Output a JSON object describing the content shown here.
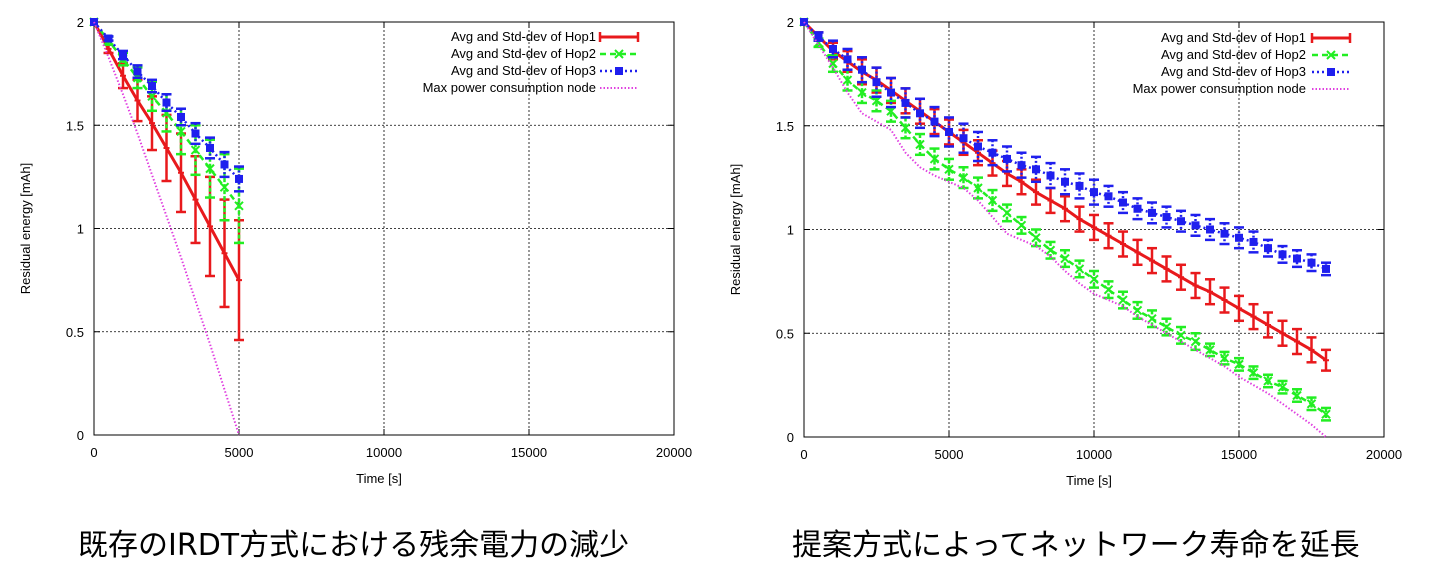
{
  "chart_data": [
    {
      "type": "line",
      "xlabel": "Time [s]",
      "ylabel": "Residual energy [mAh]",
      "xlim": [
        0,
        20000
      ],
      "ylim": [
        0,
        2
      ],
      "xticks": [
        "0",
        "5000",
        "10000",
        "15000",
        "20000"
      ],
      "yticks": [
        "0",
        "0.5",
        "1",
        "1.5",
        "2"
      ],
      "grid": true,
      "legend_position": "top-right",
      "caption": "既存のIRDT方式における残余電力の減少",
      "series": [
        {
          "name": "Avg and Std-dev of Hop1",
          "color": "#e8191c",
          "style": "solid-errorbar",
          "x": [
            0,
            500,
            1000,
            1500,
            2000,
            2500,
            3000,
            3500,
            4000,
            4500,
            5000
          ],
          "y": [
            2.0,
            1.87,
            1.74,
            1.62,
            1.51,
            1.39,
            1.27,
            1.14,
            1.01,
            0.88,
            0.75
          ],
          "err": [
            0,
            0.02,
            0.06,
            0.1,
            0.13,
            0.16,
            0.19,
            0.21,
            0.24,
            0.26,
            0.29
          ]
        },
        {
          "name": "Avg and Std-dev of Hop2",
          "color": "#22ee22",
          "style": "dashed-x",
          "x": [
            0,
            500,
            1000,
            1500,
            2000,
            2500,
            3000,
            3500,
            4000,
            4500,
            5000
          ],
          "y": [
            2.0,
            1.91,
            1.82,
            1.73,
            1.64,
            1.56,
            1.47,
            1.38,
            1.29,
            1.2,
            1.11
          ],
          "err": [
            0,
            0.02,
            0.03,
            0.05,
            0.07,
            0.09,
            0.11,
            0.12,
            0.14,
            0.16,
            0.18
          ]
        },
        {
          "name": "Avg and Std-dev of Hop3",
          "color": "#1f1fee",
          "style": "dotted-square",
          "x": [
            0,
            500,
            1000,
            1500,
            2000,
            2500,
            3000,
            3500,
            4000,
            4500,
            5000
          ],
          "y": [
            2.0,
            1.92,
            1.84,
            1.76,
            1.69,
            1.61,
            1.54,
            1.46,
            1.39,
            1.31,
            1.24
          ],
          "err": [
            0,
            0.01,
            0.02,
            0.03,
            0.03,
            0.04,
            0.04,
            0.05,
            0.05,
            0.06,
            0.06
          ]
        },
        {
          "name": "Max power consumption node",
          "color": "#e040e0",
          "style": "dotted-line",
          "x": [
            0,
            500,
            1000,
            1500,
            2000,
            2500,
            3000,
            3500,
            4000,
            4500,
            5000
          ],
          "y": [
            2.0,
            1.83,
            1.65,
            1.46,
            1.26,
            1.06,
            0.86,
            0.65,
            0.44,
            0.22,
            0.0
          ]
        }
      ]
    },
    {
      "type": "line",
      "xlabel": "Time [s]",
      "ylabel": "Residual energy [mAh]",
      "xlim": [
        0,
        20000
      ],
      "ylim": [
        0,
        2
      ],
      "xticks": [
        "0",
        "5000",
        "10000",
        "15000",
        "20000"
      ],
      "yticks": [
        "0",
        "0.5",
        "1",
        "1.5",
        "2"
      ],
      "grid": true,
      "legend_position": "top-right",
      "caption": "提案方式によってネットワーク寿命を延長",
      "series": [
        {
          "name": "Avg and Std-dev of Hop1",
          "color": "#e8191c",
          "style": "solid-errorbar",
          "x": [
            0,
            500,
            1000,
            1500,
            2000,
            2500,
            3000,
            3500,
            4000,
            4500,
            5000,
            5500,
            6000,
            6500,
            7000,
            7500,
            8000,
            8500,
            9000,
            9500,
            10000,
            10500,
            11000,
            11500,
            12000,
            12500,
            13000,
            13500,
            14000,
            14500,
            15000,
            15500,
            16000,
            16500,
            17000,
            17500,
            18000
          ],
          "y": [
            2.0,
            1.93,
            1.86,
            1.81,
            1.76,
            1.72,
            1.67,
            1.62,
            1.57,
            1.52,
            1.47,
            1.42,
            1.37,
            1.32,
            1.27,
            1.23,
            1.18,
            1.14,
            1.1,
            1.05,
            1.01,
            0.97,
            0.93,
            0.89,
            0.85,
            0.81,
            0.77,
            0.73,
            0.7,
            0.66,
            0.62,
            0.58,
            0.54,
            0.5,
            0.46,
            0.42,
            0.37
          ],
          "err": [
            0,
            0.02,
            0.04,
            0.05,
            0.06,
            0.06,
            0.06,
            0.06,
            0.06,
            0.06,
            0.06,
            0.06,
            0.06,
            0.06,
            0.06,
            0.06,
            0.06,
            0.06,
            0.06,
            0.06,
            0.06,
            0.06,
            0.06,
            0.06,
            0.06,
            0.06,
            0.06,
            0.06,
            0.06,
            0.06,
            0.06,
            0.06,
            0.06,
            0.06,
            0.06,
            0.06,
            0.05
          ]
        },
        {
          "name": "Avg and Std-dev of Hop2",
          "color": "#22ee22",
          "style": "dashed-x",
          "x": [
            0,
            500,
            1000,
            1500,
            2000,
            2500,
            3000,
            3500,
            4000,
            4500,
            5000,
            5500,
            6000,
            6500,
            7000,
            7500,
            8000,
            8500,
            9000,
            9500,
            10000,
            10500,
            11000,
            11500,
            12000,
            12500,
            13000,
            13500,
            14000,
            14500,
            15000,
            15500,
            16000,
            16500,
            17000,
            17500,
            18000
          ],
          "y": [
            2.0,
            1.9,
            1.8,
            1.72,
            1.66,
            1.62,
            1.57,
            1.49,
            1.41,
            1.34,
            1.29,
            1.25,
            1.2,
            1.14,
            1.08,
            1.02,
            0.96,
            0.9,
            0.86,
            0.81,
            0.76,
            0.71,
            0.66,
            0.61,
            0.57,
            0.53,
            0.49,
            0.46,
            0.42,
            0.38,
            0.35,
            0.31,
            0.27,
            0.24,
            0.2,
            0.16,
            0.11
          ],
          "err": [
            0,
            0.02,
            0.04,
            0.05,
            0.05,
            0.05,
            0.05,
            0.05,
            0.05,
            0.05,
            0.05,
            0.05,
            0.05,
            0.05,
            0.04,
            0.04,
            0.04,
            0.04,
            0.04,
            0.04,
            0.04,
            0.04,
            0.04,
            0.04,
            0.04,
            0.04,
            0.04,
            0.04,
            0.03,
            0.03,
            0.03,
            0.03,
            0.03,
            0.03,
            0.03,
            0.03,
            0.03
          ]
        },
        {
          "name": "Avg and Std-dev of Hop3",
          "color": "#1f1fee",
          "style": "dotted-square",
          "x": [
            0,
            500,
            1000,
            1500,
            2000,
            2500,
            3000,
            3500,
            4000,
            4500,
            5000,
            5500,
            6000,
            6500,
            7000,
            7500,
            8000,
            8500,
            9000,
            9500,
            10000,
            10500,
            11000,
            11500,
            12000,
            12500,
            13000,
            13500,
            14000,
            14500,
            15000,
            15500,
            16000,
            16500,
            17000,
            17500,
            18000
          ],
          "y": [
            2.0,
            1.93,
            1.87,
            1.82,
            1.77,
            1.71,
            1.66,
            1.61,
            1.56,
            1.52,
            1.47,
            1.44,
            1.4,
            1.37,
            1.34,
            1.31,
            1.29,
            1.26,
            1.23,
            1.21,
            1.18,
            1.16,
            1.13,
            1.1,
            1.08,
            1.06,
            1.04,
            1.02,
            1.0,
            0.98,
            0.96,
            0.94,
            0.91,
            0.88,
            0.86,
            0.84,
            0.81
          ],
          "err": [
            0,
            0.02,
            0.04,
            0.05,
            0.06,
            0.07,
            0.07,
            0.07,
            0.07,
            0.07,
            0.07,
            0.07,
            0.07,
            0.06,
            0.06,
            0.06,
            0.06,
            0.06,
            0.06,
            0.06,
            0.06,
            0.05,
            0.05,
            0.05,
            0.05,
            0.05,
            0.05,
            0.05,
            0.05,
            0.05,
            0.05,
            0.05,
            0.04,
            0.04,
            0.04,
            0.04,
            0.03
          ]
        },
        {
          "name": "Max power consumption node",
          "color": "#e040e0",
          "style": "dotted-line",
          "x": [
            0,
            500,
            1000,
            1500,
            2000,
            2500,
            3000,
            3500,
            4000,
            4500,
            5000,
            5500,
            6000,
            6500,
            7000,
            7500,
            8000,
            8500,
            9000,
            9500,
            10000,
            10500,
            11000,
            11500,
            12000,
            12500,
            13000,
            13500,
            14000,
            14500,
            15000,
            15500,
            16000,
            16500,
            17000,
            17500,
            18000
          ],
          "y": [
            2.0,
            1.89,
            1.78,
            1.66,
            1.56,
            1.52,
            1.48,
            1.37,
            1.3,
            1.26,
            1.23,
            1.2,
            1.14,
            1.06,
            0.98,
            0.95,
            0.92,
            0.87,
            0.8,
            0.74,
            0.69,
            0.66,
            0.63,
            0.58,
            0.54,
            0.5,
            0.46,
            0.42,
            0.38,
            0.34,
            0.29,
            0.25,
            0.21,
            0.16,
            0.11,
            0.06,
            0.0
          ]
        }
      ]
    }
  ]
}
